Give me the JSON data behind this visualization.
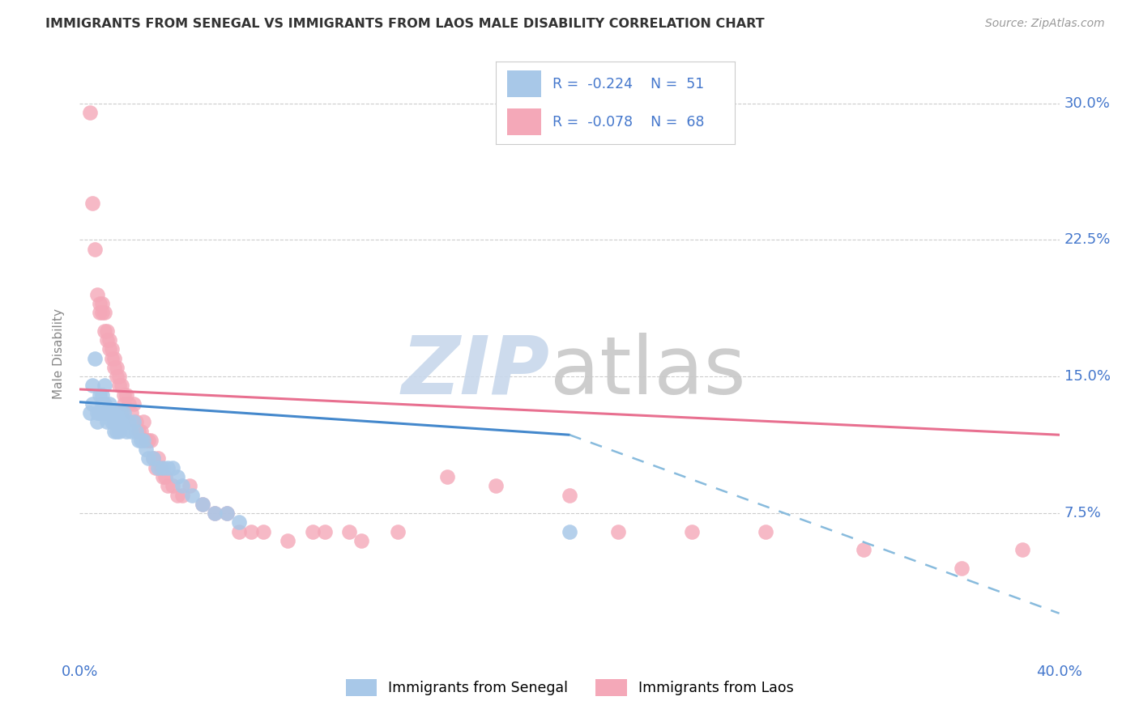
{
  "title": "IMMIGRANTS FROM SENEGAL VS IMMIGRANTS FROM LAOS MALE DISABILITY CORRELATION CHART",
  "source": "Source: ZipAtlas.com",
  "ylabel": "Male Disability",
  "ytick_labels": [
    "7.5%",
    "15.0%",
    "22.5%",
    "30.0%"
  ],
  "ytick_values": [
    0.075,
    0.15,
    0.225,
    0.3
  ],
  "xlim": [
    0.0,
    0.4
  ],
  "ylim": [
    0.0,
    0.325
  ],
  "legend_r1": "-0.224",
  "legend_n1": "51",
  "legend_r2": "-0.078",
  "legend_n2": "68",
  "color_senegal": "#a8c8e8",
  "color_laos": "#f4a8b8",
  "trendline_senegal_solid_color": "#4488cc",
  "trendline_senegal_dashed_color": "#88bbdd",
  "trendline_laos_color": "#e87090",
  "watermark_zip_color": "#c8d8ec",
  "watermark_atlas_color": "#c8c8c8",
  "senegal_x": [
    0.004,
    0.005,
    0.005,
    0.006,
    0.007,
    0.007,
    0.008,
    0.008,
    0.009,
    0.009,
    0.01,
    0.01,
    0.01,
    0.011,
    0.011,
    0.012,
    0.012,
    0.013,
    0.013,
    0.014,
    0.014,
    0.015,
    0.015,
    0.016,
    0.016,
    0.017,
    0.017,
    0.018,
    0.019,
    0.02,
    0.021,
    0.022,
    0.023,
    0.024,
    0.025,
    0.026,
    0.027,
    0.028,
    0.03,
    0.032,
    0.034,
    0.036,
    0.038,
    0.04,
    0.042,
    0.046,
    0.05,
    0.055,
    0.06,
    0.065,
    0.2
  ],
  "senegal_y": [
    0.13,
    0.135,
    0.145,
    0.16,
    0.125,
    0.13,
    0.13,
    0.14,
    0.135,
    0.14,
    0.13,
    0.135,
    0.145,
    0.125,
    0.13,
    0.13,
    0.135,
    0.125,
    0.13,
    0.12,
    0.125,
    0.12,
    0.13,
    0.12,
    0.125,
    0.125,
    0.13,
    0.13,
    0.12,
    0.125,
    0.12,
    0.125,
    0.12,
    0.115,
    0.115,
    0.115,
    0.11,
    0.105,
    0.105,
    0.1,
    0.1,
    0.1,
    0.1,
    0.095,
    0.09,
    0.085,
    0.08,
    0.075,
    0.075,
    0.07,
    0.065
  ],
  "laos_x": [
    0.004,
    0.005,
    0.006,
    0.007,
    0.008,
    0.008,
    0.009,
    0.009,
    0.01,
    0.01,
    0.011,
    0.011,
    0.012,
    0.012,
    0.013,
    0.013,
    0.014,
    0.014,
    0.015,
    0.015,
    0.016,
    0.016,
    0.017,
    0.018,
    0.018,
    0.019,
    0.02,
    0.021,
    0.022,
    0.023,
    0.024,
    0.025,
    0.026,
    0.027,
    0.028,
    0.029,
    0.03,
    0.031,
    0.032,
    0.033,
    0.034,
    0.035,
    0.036,
    0.038,
    0.04,
    0.042,
    0.045,
    0.05,
    0.055,
    0.06,
    0.065,
    0.07,
    0.075,
    0.085,
    0.095,
    0.1,
    0.11,
    0.115,
    0.13,
    0.15,
    0.17,
    0.2,
    0.22,
    0.25,
    0.28,
    0.32,
    0.36,
    0.385
  ],
  "laos_y": [
    0.295,
    0.245,
    0.22,
    0.195,
    0.19,
    0.185,
    0.19,
    0.185,
    0.185,
    0.175,
    0.175,
    0.17,
    0.165,
    0.17,
    0.165,
    0.16,
    0.16,
    0.155,
    0.155,
    0.15,
    0.15,
    0.145,
    0.145,
    0.14,
    0.135,
    0.14,
    0.135,
    0.13,
    0.135,
    0.125,
    0.12,
    0.12,
    0.125,
    0.115,
    0.115,
    0.115,
    0.105,
    0.1,
    0.105,
    0.1,
    0.095,
    0.095,
    0.09,
    0.09,
    0.085,
    0.085,
    0.09,
    0.08,
    0.075,
    0.075,
    0.065,
    0.065,
    0.065,
    0.06,
    0.065,
    0.065,
    0.065,
    0.06,
    0.065,
    0.095,
    0.09,
    0.085,
    0.065,
    0.065,
    0.065,
    0.055,
    0.045,
    0.055
  ],
  "trendline_laos_x0": 0.0,
  "trendline_laos_x1": 0.4,
  "trendline_laos_y0": 0.143,
  "trendline_laos_y1": 0.118,
  "trendline_senegal_solid_x0": 0.0,
  "trendline_senegal_solid_x1": 0.2,
  "trendline_senegal_solid_y0": 0.136,
  "trendline_senegal_solid_y1": 0.118,
  "trendline_senegal_dashed_x0": 0.2,
  "trendline_senegal_dashed_x1": 0.4,
  "trendline_senegal_dashed_y0": 0.118,
  "trendline_senegal_dashed_y1": 0.02
}
